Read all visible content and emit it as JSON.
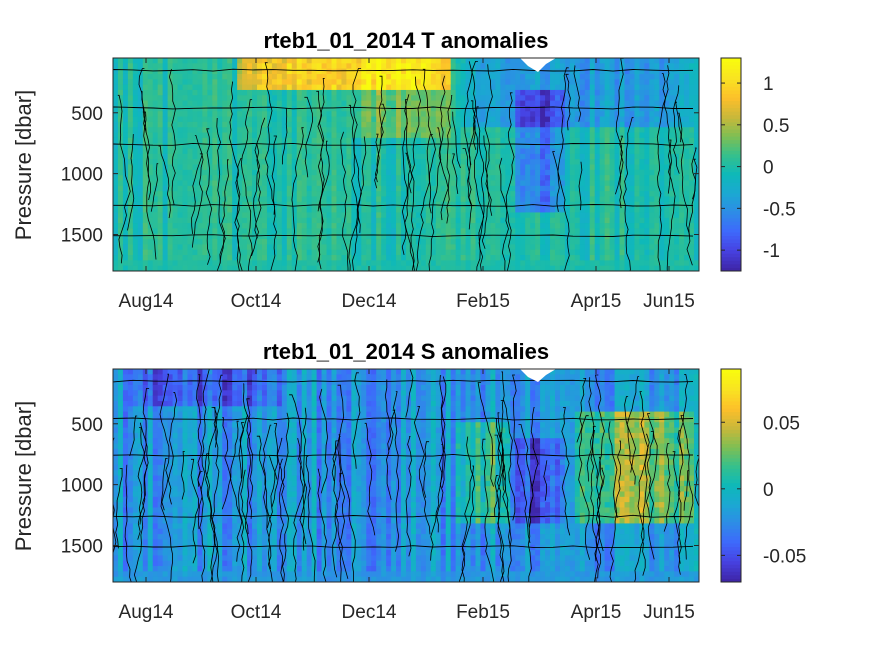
{
  "colors": {
    "figure_bg": "#ffffff",
    "axis": "#262626",
    "contour_line": "#000000",
    "colormap_parula": [
      "#3e26a8",
      "#4742e2",
      "#3e69fc",
      "#2e8ce7",
      "#1ba8d2",
      "#0eb9b9",
      "#35c08c",
      "#7fbf53",
      "#c8b83a",
      "#fdbf2a",
      "#f9e222",
      "#f9fb0e"
    ]
  },
  "chart_data": [
    {
      "type": "heatmap",
      "title": "rteb1_01_2014 T anomalies",
      "xlabel": "",
      "ylabel": "Pressure [dbar]",
      "x_ticks": [
        "Aug14",
        "Oct14",
        "Dec14",
        "Feb15",
        "Apr15",
        "Jun15"
      ],
      "y_ticks": [
        "500",
        "1000",
        "1500"
      ],
      "y_tick_values": [
        500,
        1000,
        1500
      ],
      "ylim": [
        1800,
        50
      ],
      "y_reversed": true,
      "colorbar": {
        "ticks": [
          "1",
          "0.5",
          "0",
          "-0.5",
          "-1"
        ],
        "tick_values": [
          1,
          0.5,
          0,
          -0.5,
          -1
        ],
        "clim": [
          -1.25,
          1.3
        ]
      },
      "horizontal_reference_lines_dbar": [
        150,
        460,
        760,
        1260,
        1510
      ],
      "values_note": "",
      "grid": false,
      "data_features": [
        {
          "feature": "warm surface anomaly",
          "time": "Oct14-Jan15",
          "pressure_range": [
            50,
            300
          ],
          "value": 1.0
        },
        {
          "feature": "warm subsurface column",
          "time": "Dec14-Jan15",
          "pressure_range": [
            50,
            700
          ],
          "value": 0.4
        },
        {
          "feature": "cold column",
          "time": "Mar15",
          "pressure_range": [
            300,
            1300
          ],
          "value": -0.9
        },
        {
          "feature": "cool upper layer",
          "time": "Feb15-Jun15",
          "pressure_range": [
            50,
            600
          ],
          "value": -0.5
        },
        {
          "feature": "background",
          "time": "Aug14-Jun15",
          "pressure_range": [
            300,
            1800
          ],
          "value": 0.0
        }
      ]
    },
    {
      "type": "heatmap",
      "title": "rteb1_01_2014 S anomalies",
      "xlabel": "",
      "ylabel": "Pressure [dbar]",
      "x_ticks": [
        "Aug14",
        "Oct14",
        "Dec14",
        "Feb15",
        "Apr15",
        "Jun15"
      ],
      "y_ticks": [
        "500",
        "1000",
        "1500"
      ],
      "y_tick_values": [
        500,
        1000,
        1500
      ],
      "ylim": [
        1800,
        50
      ],
      "y_reversed": true,
      "colorbar": {
        "ticks": [
          "0.05",
          "0",
          "-0.05"
        ],
        "tick_values": [
          0.05,
          0,
          -0.05
        ],
        "clim": [
          -0.07,
          0.09
        ]
      },
      "horizontal_reference_lines_dbar": [
        150,
        460,
        760,
        1260,
        1510
      ],
      "grid": false,
      "data_features": [
        {
          "feature": "fresh upper layer",
          "time": "Aug14-Oct14",
          "pressure_range": [
            50,
            350
          ],
          "value": -0.05
        },
        {
          "feature": "salty patches",
          "time": "Feb15",
          "pressure_range": [
            500,
            1300
          ],
          "value": 0.03
        },
        {
          "feature": "fresh column",
          "time": "Mar15",
          "pressure_range": [
            600,
            1300
          ],
          "value": -0.06
        },
        {
          "feature": "salty patches",
          "time": "Apr15-Jun15",
          "pressure_range": [
            400,
            1300
          ],
          "value": 0.04
        },
        {
          "feature": "background",
          "time": "Aug14-Jun15",
          "pressure_range": [
            300,
            1800
          ],
          "value": -0.02
        }
      ]
    }
  ]
}
